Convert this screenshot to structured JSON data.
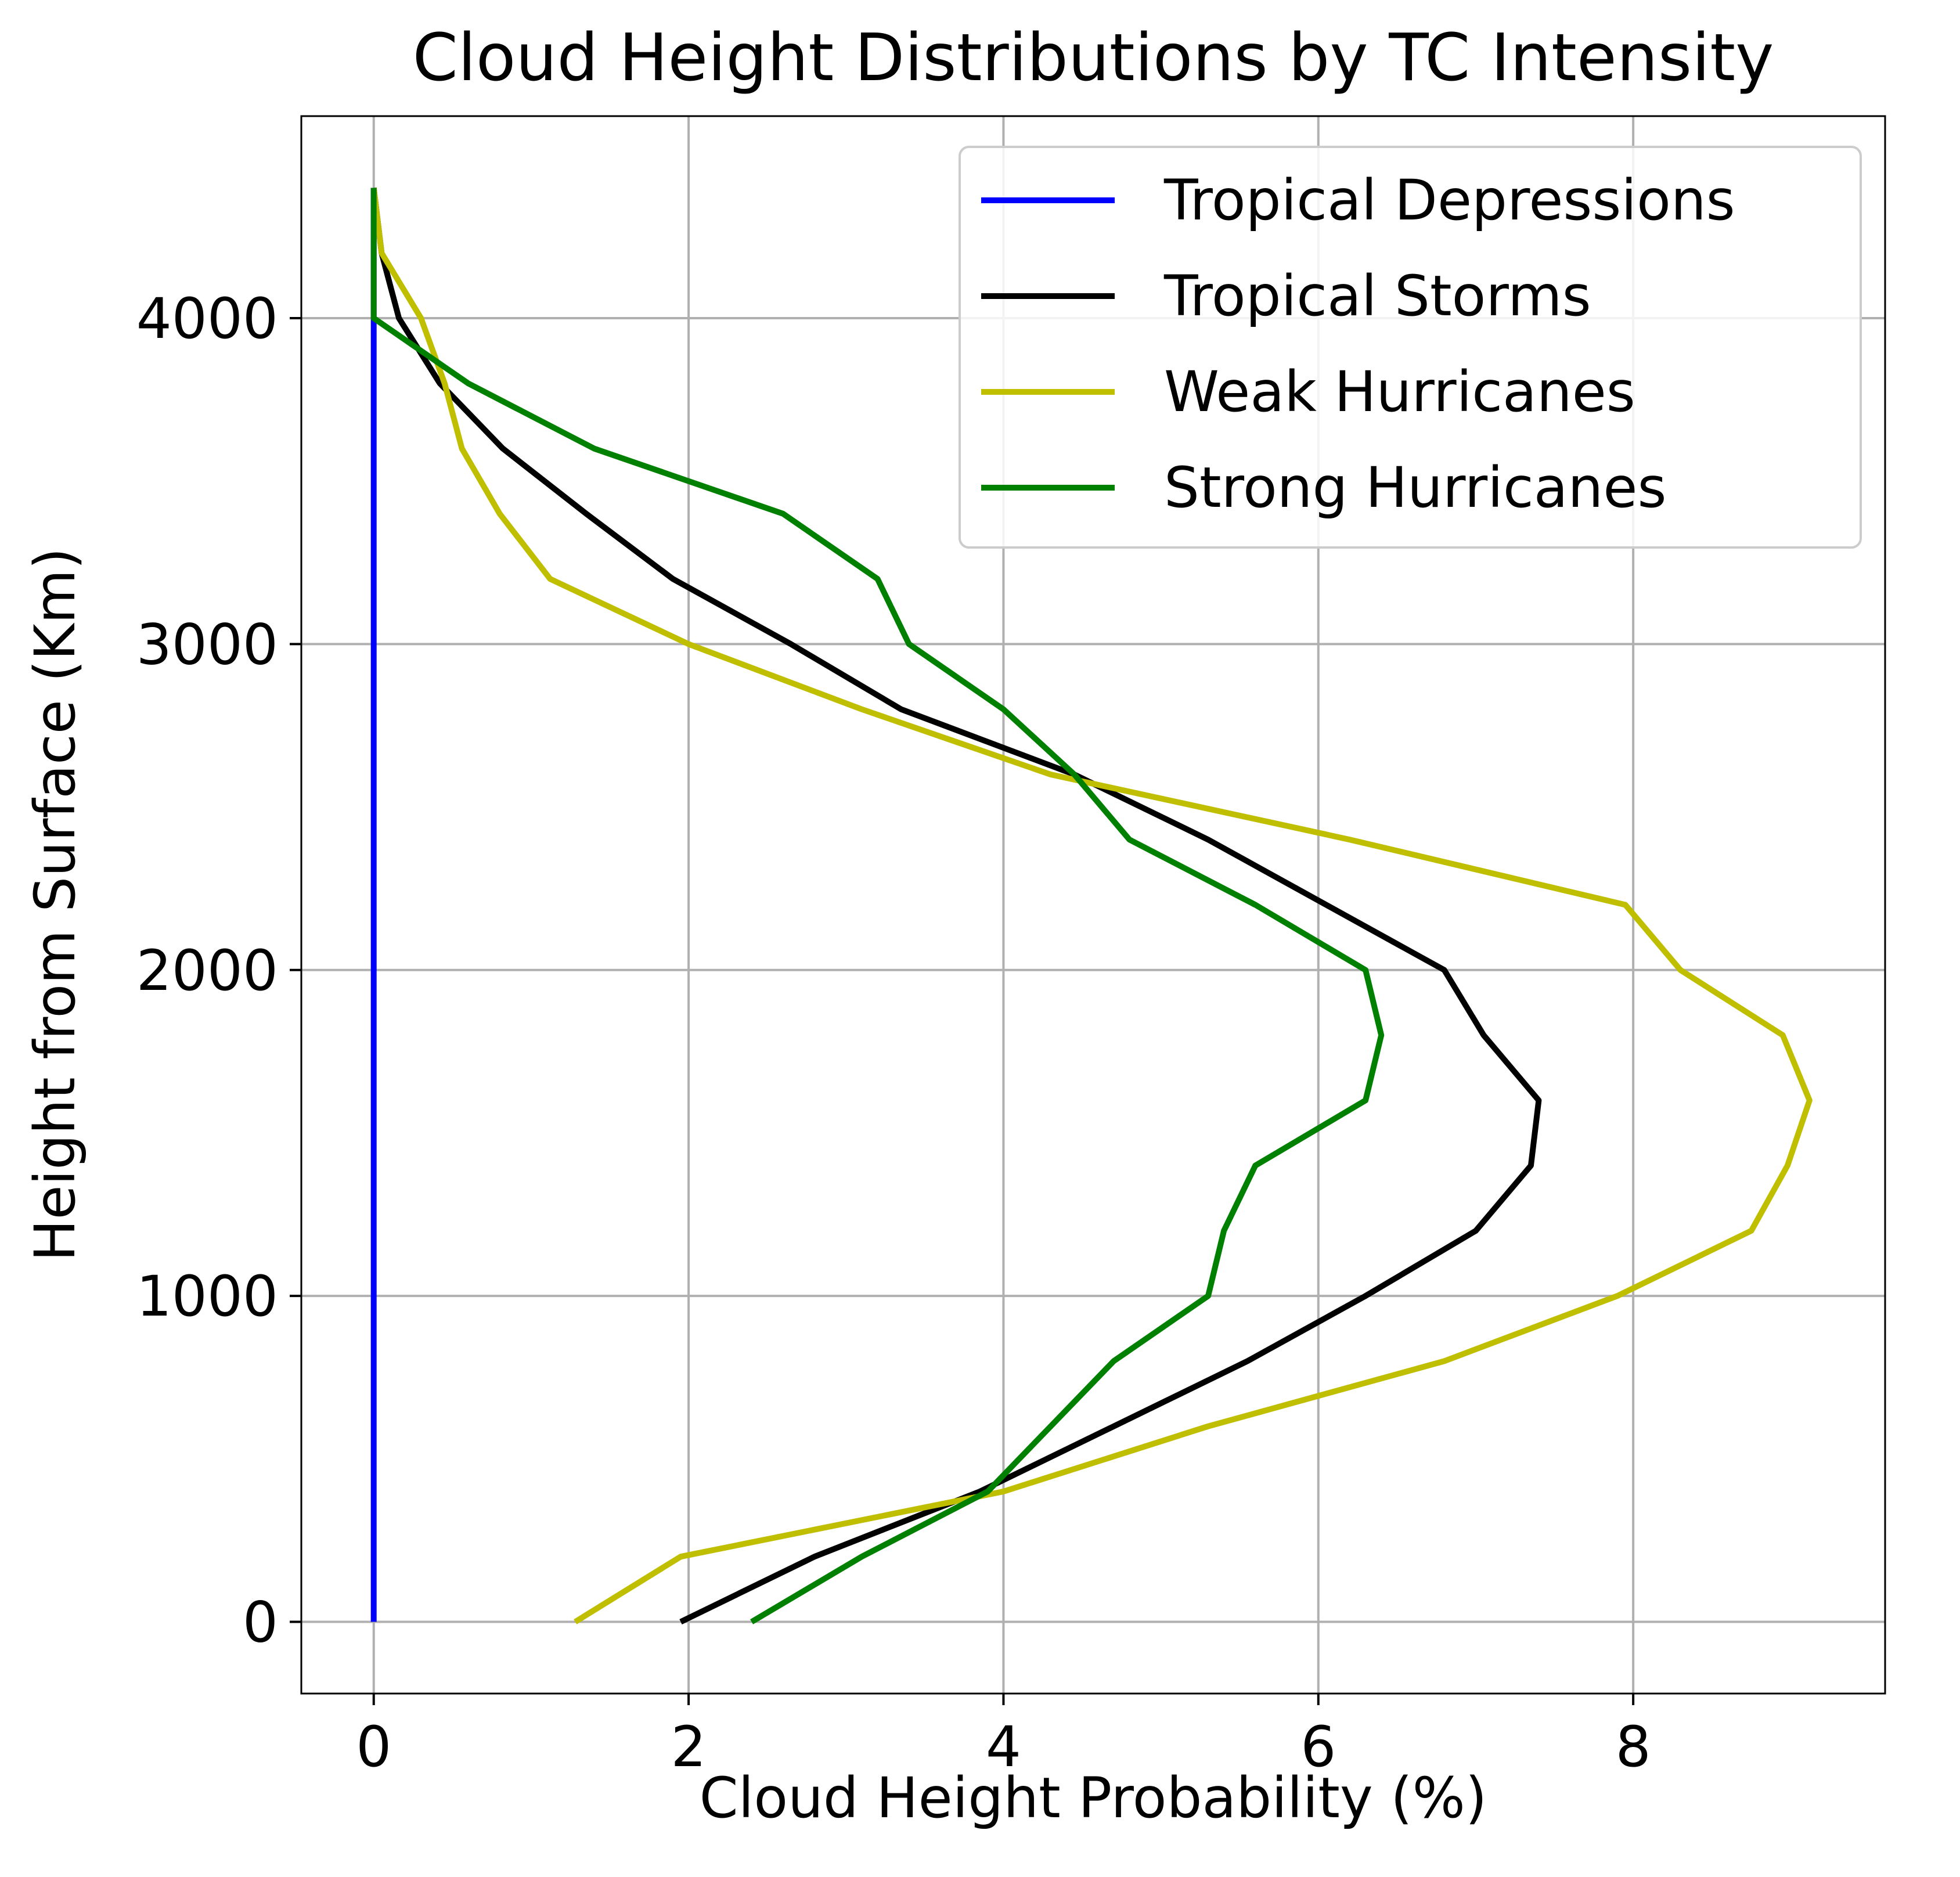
{
  "chart_data": {
    "type": "line",
    "title": "Cloud Height Distributions by TC Intensity",
    "xlabel": "Cloud Height Probability (%)",
    "ylabel": "Height from Surface (Km)",
    "xlim": [
      -0.46,
      9.6
    ],
    "ylim": [
      -220,
      4620
    ],
    "xticks": [
      0,
      2,
      4,
      6,
      8
    ],
    "yticks": [
      0,
      1000,
      2000,
      3000,
      4000
    ],
    "xtick_labels": [
      "0",
      "2",
      "4",
      "6",
      "8"
    ],
    "ytick_labels": [
      "0",
      "1000",
      "2000",
      "3000",
      "4000"
    ],
    "grid": true,
    "legend_position": "upper right",
    "heights": [
      0,
      200,
      400,
      600,
      800,
      1000,
      1200,
      1400,
      1600,
      1800,
      2000,
      2200,
      2400,
      2600,
      2800,
      3000,
      3200,
      3400,
      3600,
      3800,
      4000,
      4200,
      4400
    ],
    "series": [
      {
        "name": "Tropical Depressions",
        "color": "#0000ff",
        "values": [
          0,
          0,
          0,
          0,
          0,
          0,
          0,
          0,
          0,
          0,
          0,
          0,
          0,
          0,
          0,
          0,
          0,
          0,
          0,
          0,
          0,
          0,
          0
        ]
      },
      {
        "name": "Tropical Storms",
        "color": "#000000",
        "values": [
          1.95,
          2.8,
          3.85,
          4.7,
          5.55,
          6.3,
          7.0,
          7.35,
          7.4,
          7.05,
          6.8,
          6.05,
          5.3,
          4.45,
          3.35,
          2.65,
          1.9,
          1.35,
          0.82,
          0.42,
          0.16,
          0.05,
          0.0
        ]
      },
      {
        "name": "Weak Hurricanes",
        "color": "#bfbf00",
        "values": [
          1.28,
          1.95,
          4.0,
          5.3,
          6.8,
          7.9,
          8.75,
          8.98,
          9.12,
          8.95,
          8.3,
          7.95,
          6.2,
          4.3,
          3.1,
          2.0,
          1.12,
          0.8,
          0.56,
          0.45,
          0.3,
          0.05,
          0.0
        ]
      },
      {
        "name": "Strong Hurricanes",
        "color": "#008000",
        "values": [
          2.4,
          3.1,
          3.9,
          4.3,
          4.7,
          5.3,
          5.4,
          5.6,
          6.3,
          6.4,
          6.3,
          5.6,
          4.8,
          4.45,
          4.0,
          3.4,
          3.2,
          2.6,
          1.4,
          0.6,
          0.0,
          0.0,
          0.0
        ]
      }
    ]
  }
}
